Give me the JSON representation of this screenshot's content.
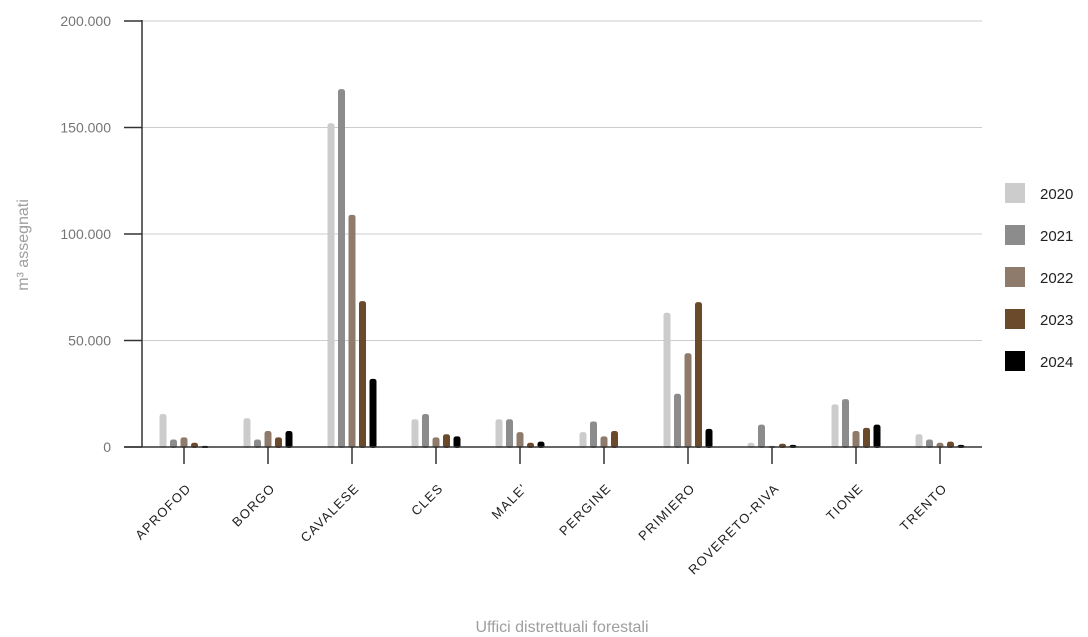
{
  "chart_data": {
    "type": "bar",
    "xlabel": "Uffici distrettuali forestali",
    "ylabel": "m³ assegnati",
    "ylim": [
      0,
      200000
    ],
    "yticks": [
      0,
      50000,
      100000,
      150000,
      200000
    ],
    "ytick_labels": [
      "0",
      "50.000",
      "100.000",
      "150.000",
      "200.000"
    ],
    "grid": true,
    "legend_position": "right",
    "categories": [
      "APROFOD",
      "BORGO",
      "CAVALESE",
      "CLES",
      "MALE'",
      "PERGINE",
      "PRIMIERO",
      "ROVERETO-RIVA",
      "TIONE",
      "TRENTO"
    ],
    "series": [
      {
        "name": "2020",
        "color": "#cccccc",
        "values": [
          15500,
          13500,
          152000,
          13000,
          13000,
          7000,
          63000,
          2000,
          20000,
          6000
        ]
      },
      {
        "name": "2021",
        "color": "#8c8c8c",
        "values": [
          3500,
          3500,
          168000,
          15500,
          13000,
          12000,
          25000,
          10500,
          22500,
          3500
        ]
      },
      {
        "name": "2022",
        "color": "#8f7b6b",
        "values": [
          4500,
          7500,
          109000,
          4500,
          7000,
          5000,
          44000,
          500,
          7500,
          2000
        ]
      },
      {
        "name": "2023",
        "color": "#6b4a2c",
        "values": [
          2000,
          4500,
          68500,
          6000,
          2000,
          7500,
          68000,
          1500,
          9000,
          2500
        ]
      },
      {
        "name": "2024",
        "color": "#000000",
        "values": [
          500,
          7500,
          32000,
          5000,
          2500,
          0,
          8500,
          1000,
          10500,
          1000
        ]
      }
    ]
  }
}
